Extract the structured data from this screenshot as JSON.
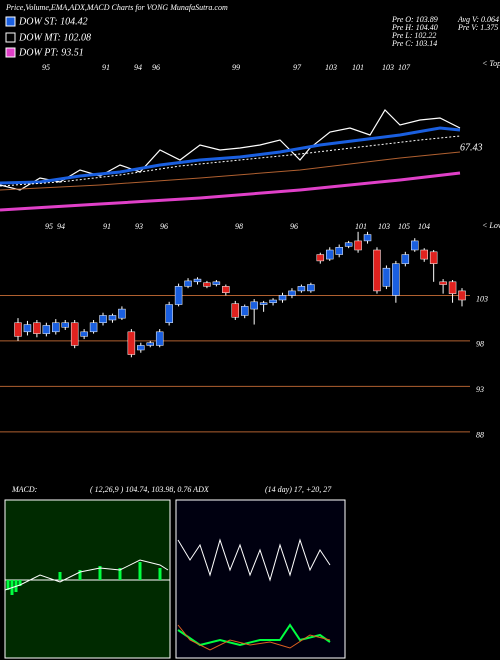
{
  "header": {
    "title": "Price,Volume,EMA,ADX,MACD Charts for VONG MunafaSutra.com"
  },
  "legend": [
    {
      "label": "DOW ST: 104.42",
      "color": "#1a5fe0"
    },
    {
      "label": "DOW MT: 102.08",
      "color": "#000000"
    },
    {
      "label": "DOW PT: 93.51",
      "color": "#e040c8"
    }
  ],
  "quote": {
    "left": [
      "Pre  O: 103.89",
      "Pre  H: 104.40",
      "Pre  L: 102.22",
      "Pre  C: 103.14"
    ],
    "right": [
      "Avg V: 0.064 M",
      "Pre  V: 1.375 M"
    ]
  },
  "ema_panel": {
    "top_labels": [
      "95",
      "91",
      "94",
      "96",
      "99",
      "97",
      "103",
      "101",
      "103",
      "107"
    ],
    "bottom_labels": [
      "95",
      "94",
      "91",
      "93",
      "96",
      "98",
      "96",
      "101",
      "103",
      "105",
      "104"
    ],
    "value_label": "67.43",
    "tops_label": "< Tops",
    "lows_label": "< Lows"
  },
  "chart_data": {
    "type": "candlestick",
    "up_color": "#1a5fe0",
    "down_color": "#e0221f",
    "open": [
      100,
      99,
      100,
      98.8,
      99,
      99.5,
      100,
      98.5,
      99,
      100,
      100.3,
      100.5,
      99,
      97,
      97.5,
      97.5,
      100,
      102,
      104,
      104.5,
      104.4,
      104.2,
      104,
      102.1,
      100.8,
      101.5,
      102,
      102.2,
      102.5,
      103,
      103.5,
      103.5,
      107.5,
      107,
      107.5,
      108.4,
      109,
      109,
      108,
      104,
      103,
      106.5,
      108,
      108,
      107.8,
      104.5,
      104.5,
      103.5
    ],
    "high": [
      100.5,
      100.2,
      100.3,
      100,
      100.4,
      100.3,
      100.3,
      99.3,
      100.3,
      101.1,
      101,
      101.8,
      99.3,
      97.8,
      98,
      99.3,
      102.3,
      104.3,
      104.9,
      105,
      104.6,
      104.7,
      104.2,
      102.4,
      102,
      102.6,
      102.4,
      102.7,
      103.3,
      103.8,
      104.2,
      104.4,
      107.7,
      108.3,
      108.6,
      109,
      110,
      110,
      108.3,
      106.3,
      106.8,
      107.8,
      109.3,
      108.2,
      108,
      104.8,
      104.7,
      103.8
    ],
    "low": [
      98,
      98.6,
      98.4,
      98.5,
      98.7,
      99.2,
      97.2,
      98.2,
      98.8,
      99.7,
      100,
      100.3,
      96.2,
      96.7,
      97.3,
      97.3,
      99.7,
      101.8,
      103.8,
      104.2,
      103.8,
      104,
      103,
      100.3,
      100.5,
      99.8,
      101.2,
      101.9,
      102.2,
      102.7,
      103.3,
      103.3,
      106.5,
      106.8,
      107.2,
      108.2,
      107.7,
      108.7,
      103.2,
      103.7,
      102.2,
      106.2,
      107.8,
      106.7,
      104.5,
      103.2,
      102.2,
      101.8
    ],
    "close": [
      98.5,
      99.8,
      98.8,
      99.7,
      100,
      100,
      97.5,
      99,
      100,
      100.8,
      100.8,
      101.5,
      96.5,
      97.5,
      97.8,
      99,
      102,
      104,
      104.6,
      104.8,
      104,
      104.5,
      103.3,
      100.6,
      101.8,
      102.3,
      102.2,
      102.5,
      103,
      103.5,
      104,
      104.2,
      106.8,
      108,
      108.3,
      108.8,
      108,
      109.7,
      103.5,
      106,
      106.5,
      107.5,
      109,
      107,
      106.5,
      104.2,
      103.2,
      102.5
    ],
    "ylim": [
      87.1,
      111.3
    ],
    "yticks": [
      103,
      98,
      93,
      88
    ]
  },
  "indicators": {
    "macd_label": "MACD:",
    "macd_params": "( 12,26,9 ) 104.74, 103.98, 0.76 ADX",
    "adx_params": "(14 day) 17, +20, 27"
  }
}
